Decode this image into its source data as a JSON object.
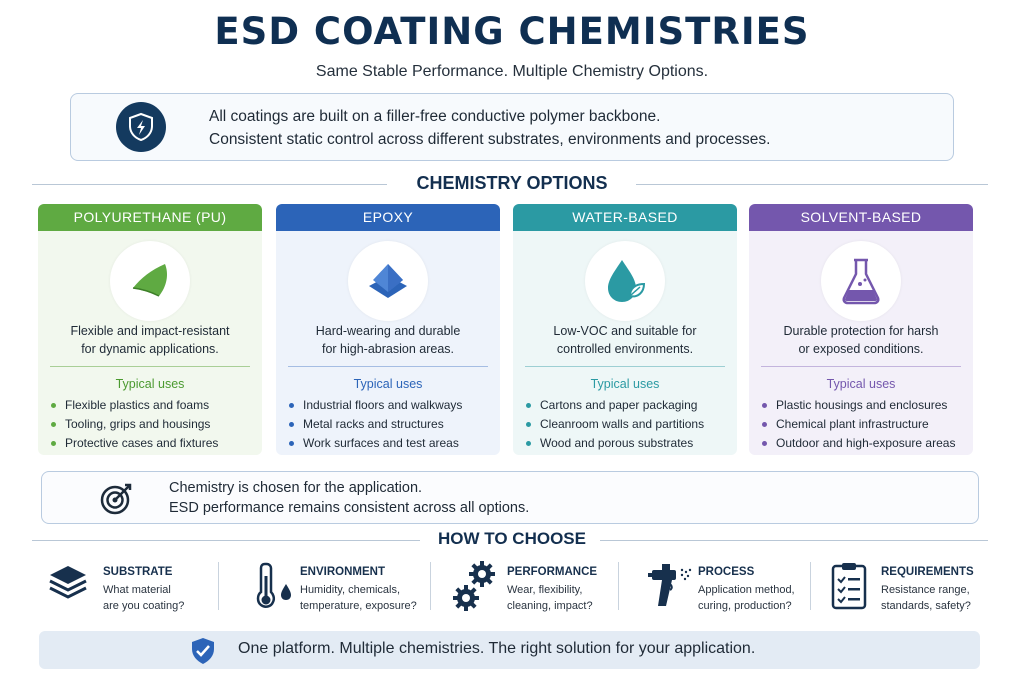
{
  "title": "ESD COATING CHEMISTRIES",
  "subtitle": "Same Stable Performance. Multiple Chemistry Options.",
  "intro": {
    "icon": "shield-bolt-icon",
    "line1": "All coatings are built on a filler-free conductive polymer backbone.",
    "line2": "Consistent static control across different substrates, environments and processes."
  },
  "options_heading": "CHEMISTRY OPTIONS",
  "cards": [
    {
      "name": "POLYURETHANE (PU)",
      "color": "#5faa42",
      "icon": "flexible-sheet-icon",
      "desc1": "Flexible and impact-resistant",
      "desc2": "for dynamic applications.",
      "uses_label": "Typical uses",
      "uses": [
        "Flexible plastics and foams",
        "Tooling, grips and housings",
        "Protective cases and fixtures"
      ]
    },
    {
      "name": "EPOXY",
      "color": "#2c64b8",
      "icon": "layered-tile-icon",
      "desc1": "Hard-wearing and durable",
      "desc2": "for high-abrasion areas.",
      "uses_label": "Typical uses",
      "uses": [
        "Industrial floors and walkways",
        "Metal racks and structures",
        "Work surfaces and test areas"
      ]
    },
    {
      "name": "WATER-BASED",
      "color": "#2b9aa3",
      "icon": "water-drop-leaf-icon",
      "desc1": "Low-VOC and suitable for",
      "desc2": "controlled environments.",
      "uses_label": "Typical uses",
      "uses": [
        "Cartons and paper packaging",
        "Cleanroom walls and partitions",
        "Wood and porous substrates"
      ]
    },
    {
      "name": "SOLVENT-BASED",
      "color": "#7457ad",
      "icon": "flask-icon",
      "desc1": "Durable protection for harsh",
      "desc2": "or exposed conditions.",
      "uses_label": "Typical uses",
      "uses": [
        "Plastic housings and enclosures",
        "Chemical plant infrastructure",
        "Outdoor and high-exposure areas"
      ]
    }
  ],
  "note": {
    "icon": "target-icon",
    "line1": "Chemistry is chosen for the application.",
    "line2": "ESD performance remains consistent across all options."
  },
  "choose_heading": "HOW TO CHOOSE",
  "factors": [
    {
      "title": "SUBSTRATE",
      "q1": "What material",
      "q2": "are you coating?",
      "icon": "layers-icon"
    },
    {
      "title": "ENVIRONMENT",
      "q1": "Humidity, chemicals,",
      "q2": "temperature, exposure?",
      "icon": "thermometer-drop-icon"
    },
    {
      "title": "PERFORMANCE",
      "q1": "Wear, flexibility,",
      "q2": "cleaning, impact?",
      "icon": "gears-icon"
    },
    {
      "title": "PROCESS",
      "q1": "Application method,",
      "q2": "curing, production?",
      "icon": "spray-gun-icon"
    },
    {
      "title": "REQUIREMENTS",
      "q1": "Resistance range,",
      "q2": "standards, safety?",
      "icon": "checklist-icon"
    }
  ],
  "footer": {
    "icon": "shield-check-icon",
    "text": "One platform. Multiple chemistries. The right solution for your application."
  }
}
